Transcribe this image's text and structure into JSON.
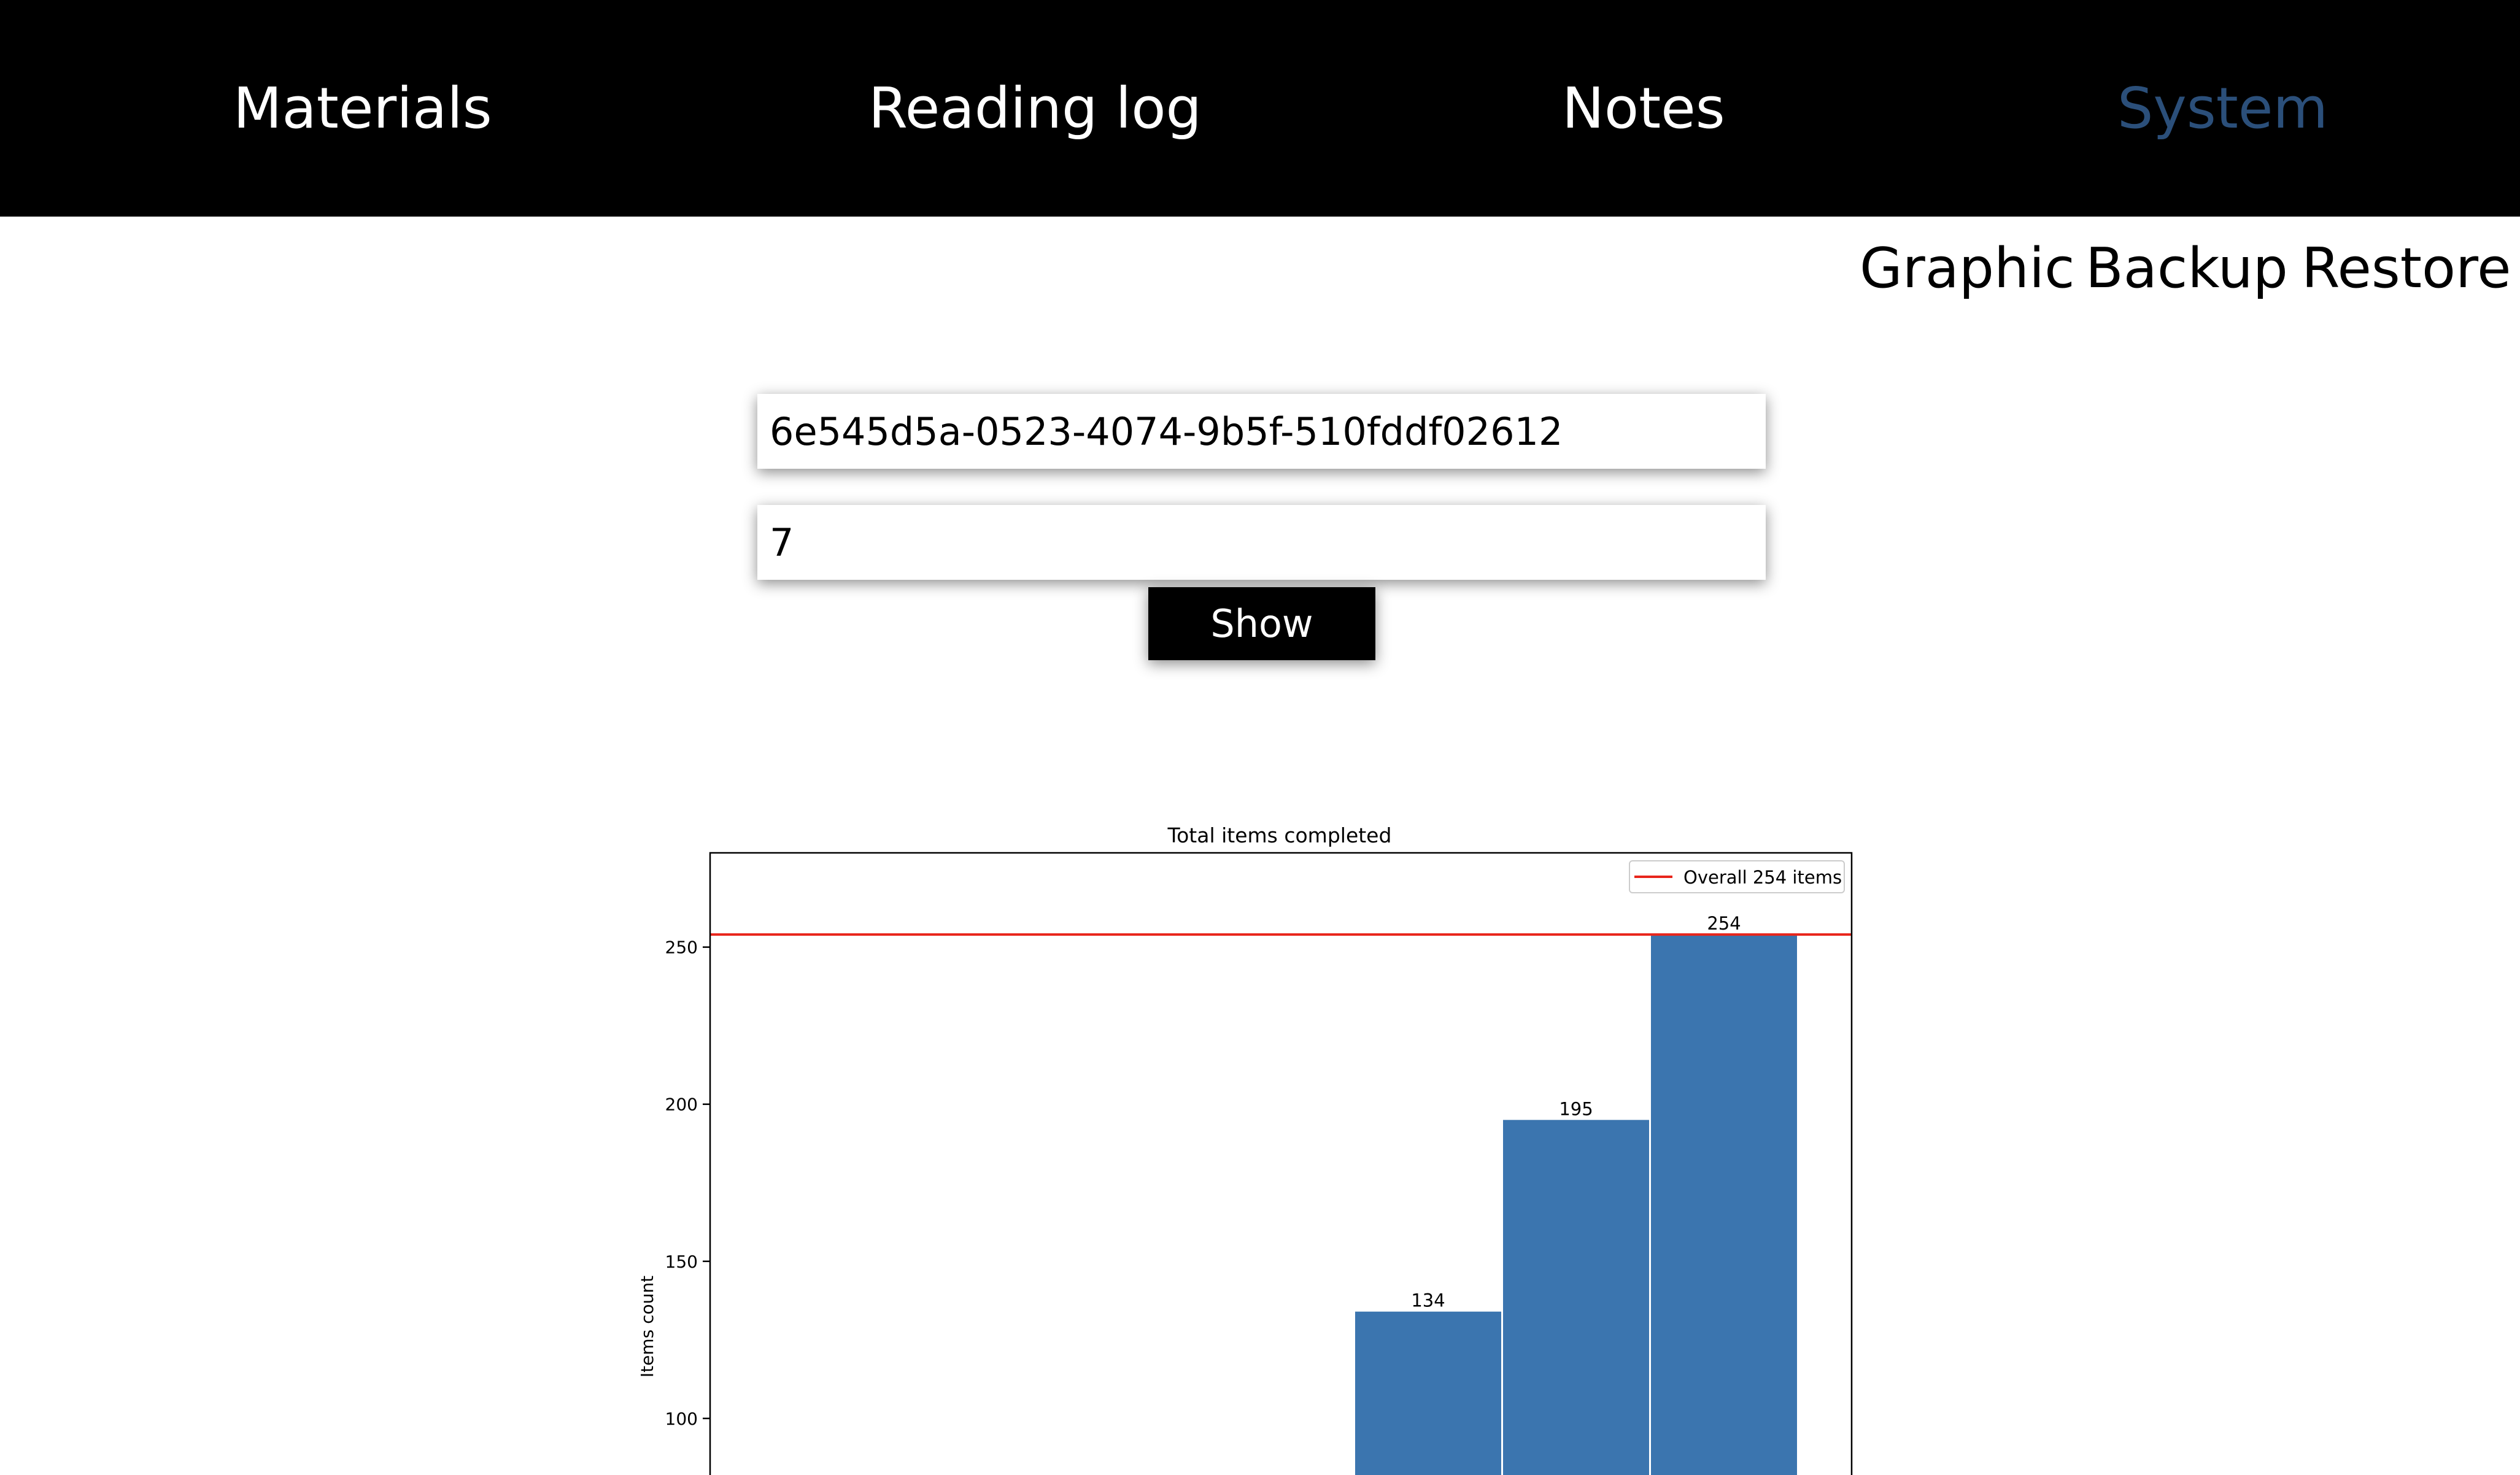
{
  "nav": {
    "items": [
      {
        "label": "Materials",
        "active": false
      },
      {
        "label": "Reading log",
        "active": false
      },
      {
        "label": "Notes",
        "active": false
      },
      {
        "label": "System",
        "active": true
      }
    ]
  },
  "subnav": {
    "items": [
      {
        "label": "Graphic"
      },
      {
        "label": "Backup"
      },
      {
        "label": "Restore"
      }
    ]
  },
  "form": {
    "id_value": "6e545d5a-0523-4074-9b5f-510fddf02612",
    "count_value": "7",
    "show_label": "Show"
  },
  "colors": {
    "nav_bg": "#000000",
    "active_nav": "#2b4f7a",
    "bar": "#3b75af",
    "reference_line": "#e8251b"
  },
  "chart_data": {
    "type": "bar",
    "title": "Total items completed",
    "ylabel": "Items count",
    "xlabel": "",
    "yticks": [
      100,
      150,
      200,
      250
    ],
    "ylim_visible": [
      82,
      280
    ],
    "bars": [
      {
        "slot": 4,
        "value": 134,
        "label": "134"
      },
      {
        "slot": 5,
        "value": 195,
        "label": "195"
      },
      {
        "slot": 6,
        "value": 254,
        "label": "254"
      }
    ],
    "slots": 7,
    "reference_line": {
      "value": 254,
      "label": "Overall 254 items"
    },
    "legend_position": "top-right",
    "grid": false
  }
}
